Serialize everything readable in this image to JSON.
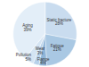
{
  "chart_data": {
    "type": "pie",
    "categories": [
      "Static fracture",
      "Fatigue",
      "Flange",
      "Wear",
      "Pollution",
      "Aging"
    ],
    "values": [
      28,
      21,
      4,
      3,
      5,
      39
    ],
    "value_labels": [
      "28%",
      "21%",
      "4%",
      "3%",
      "5%",
      "39%"
    ],
    "colors": [
      "#c9dcef",
      "#a9c8e3",
      "#8fb5d8",
      "#b7d1ea",
      "#d4e4f3",
      "#e3eef8"
    ],
    "data_labels": true
  }
}
